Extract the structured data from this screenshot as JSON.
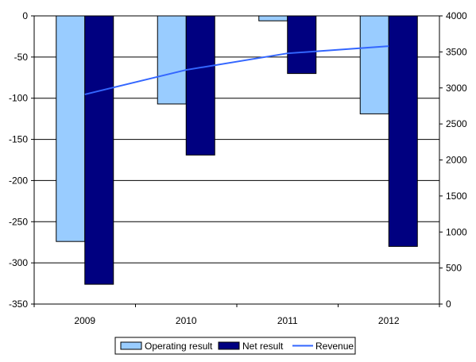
{
  "chart_data": {
    "type": "bar",
    "categories": [
      "2009",
      "2010",
      "2011",
      "2012"
    ],
    "series": [
      {
        "name": "Operating result",
        "type": "bar",
        "axis": "left",
        "color": "#99ccff",
        "values": [
          -274,
          -107,
          -6,
          -119
        ]
      },
      {
        "name": "Net result",
        "type": "bar",
        "axis": "left",
        "color": "#000080",
        "values": [
          -326,
          -169,
          -70,
          -280
        ]
      },
      {
        "name": "Revenue",
        "type": "line",
        "axis": "right",
        "color": "#3366ff",
        "values": [
          2910,
          3250,
          3480,
          3580
        ]
      }
    ],
    "y_left": {
      "min": -350,
      "max": 0,
      "ticks": [
        "0",
        "-50",
        "-100",
        "-150",
        "-200",
        "-250",
        "-300",
        "-350"
      ]
    },
    "y_right": {
      "min": 0,
      "max": 4000,
      "ticks": [
        "4000",
        "3500",
        "3000",
        "2500",
        "2000",
        "1500",
        "1000",
        "500",
        "0"
      ]
    },
    "grid": true,
    "legend_position": "bottom",
    "title": "",
    "xlabel": "",
    "ylabel": ""
  }
}
